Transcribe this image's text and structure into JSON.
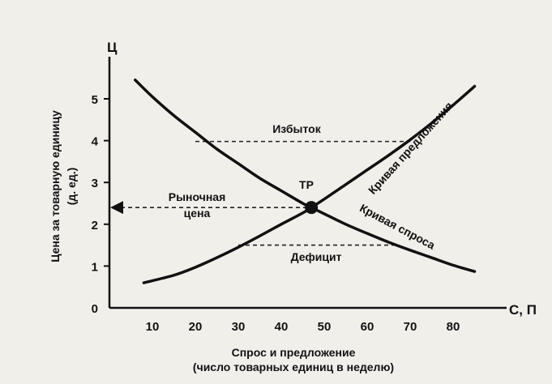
{
  "chart_data": {
    "type": "line",
    "y_axis_letter": "Ц",
    "x_axis_letter": "С, П",
    "ylabel_line1": "Цена за товарную единицу",
    "ylabel_line2": "(д. ед.)",
    "xlabel_line1": "Спрос и предложение",
    "xlabel_line2": "(число товарных единиц в неделю)",
    "x_ticks": [
      "10",
      "20",
      "30",
      "40",
      "50",
      "60",
      "70",
      "80"
    ],
    "y_ticks": [
      "0",
      "1",
      "2",
      "3",
      "4",
      "5"
    ],
    "xlim": [
      0,
      88
    ],
    "ylim": [
      0,
      5.7
    ],
    "series": [
      {
        "name": "Кривая спроса",
        "x": [
          6,
          10,
          15,
          20,
          25,
          30,
          35,
          40,
          45,
          47,
          50,
          55,
          60,
          65,
          70,
          75,
          80,
          85
        ],
        "y": [
          5.45,
          5.05,
          4.6,
          4.2,
          3.8,
          3.45,
          3.1,
          2.8,
          2.5,
          2.4,
          2.25,
          2.0,
          1.78,
          1.57,
          1.38,
          1.2,
          1.02,
          0.87
        ]
      },
      {
        "name": "Кривая предложения",
        "x": [
          8,
          15,
          20,
          25,
          30,
          35,
          40,
          45,
          47,
          50,
          55,
          60,
          65,
          70,
          75,
          80,
          85
        ],
        "y": [
          0.6,
          0.78,
          0.97,
          1.2,
          1.45,
          1.72,
          2.0,
          2.27,
          2.4,
          2.6,
          2.95,
          3.3,
          3.65,
          4.02,
          4.42,
          4.85,
          5.3
        ]
      }
    ],
    "equilibrium": {
      "label": "ТР",
      "x": 47,
      "y": 2.4
    },
    "market_price": {
      "label_line1": "Рыночная",
      "label_line2": "цена",
      "y": 2.4
    },
    "surplus": {
      "label": "Избыток",
      "y": 3.98,
      "x_from": 20,
      "x_to": 70
    },
    "shortage": {
      "label": "Дефицит",
      "y": 1.5,
      "x_from": 30,
      "x_to": 67
    }
  }
}
